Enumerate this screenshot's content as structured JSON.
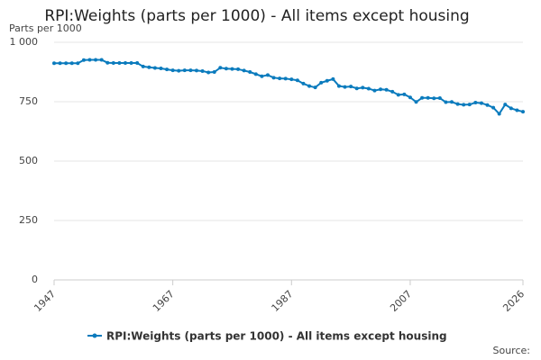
{
  "chart_data": {
    "type": "line",
    "title": "RPI:Weights (parts per 1000) - All items except housing",
    "y_axis_label": "Parts per 1000",
    "source": "Source:",
    "x": [
      1947,
      1948,
      1949,
      1950,
      1951,
      1952,
      1953,
      1954,
      1955,
      1956,
      1957,
      1958,
      1959,
      1960,
      1961,
      1962,
      1963,
      1964,
      1965,
      1966,
      1967,
      1968,
      1969,
      1970,
      1971,
      1972,
      1973,
      1974,
      1975,
      1976,
      1977,
      1978,
      1979,
      1980,
      1981,
      1982,
      1983,
      1984,
      1985,
      1986,
      1987,
      1988,
      1989,
      1990,
      1991,
      1992,
      1993,
      1994,
      1995,
      1996,
      1997,
      1998,
      1999,
      2000,
      2001,
      2002,
      2003,
      2004,
      2005,
      2006,
      2007,
      2008,
      2009,
      2010,
      2011,
      2012,
      2013,
      2014,
      2015,
      2016,
      2017,
      2018,
      2019,
      2020,
      2021,
      2022,
      2023,
      2024,
      2025,
      2026
    ],
    "series": [
      {
        "name": "RPI:Weights (parts per 1000) - All items except housing",
        "color": "#0b7bbd",
        "values": [
          912,
          912,
          912,
          912,
          912,
          925,
          926,
          926,
          926,
          914,
          913,
          913,
          913,
          913,
          913,
          898,
          895,
          892,
          890,
          886,
          882,
          880,
          882,
          882,
          881,
          879,
          873,
          875,
          893,
          889,
          888,
          887,
          881,
          875,
          866,
          857,
          862,
          851,
          848,
          847,
          844,
          840,
          826,
          816,
          810,
          830,
          838,
          845,
          816,
          812,
          814,
          806,
          809,
          805,
          797,
          802,
          800,
          792,
          779,
          781,
          768,
          749,
          766,
          766,
          764,
          765,
          748,
          749,
          740,
          737,
          738,
          746,
          744,
          736,
          725,
          699,
          738,
          722,
          714,
          708
        ]
      }
    ],
    "xlim": [
      1947,
      2026
    ],
    "xticks": [
      1947,
      1967,
      1987,
      2007,
      2026
    ],
    "ylim": [
      0,
      1000
    ],
    "yticks": [
      0,
      250,
      500,
      750,
      {
        "value": 1000,
        "label": "1 000"
      }
    ],
    "grid": true
  }
}
